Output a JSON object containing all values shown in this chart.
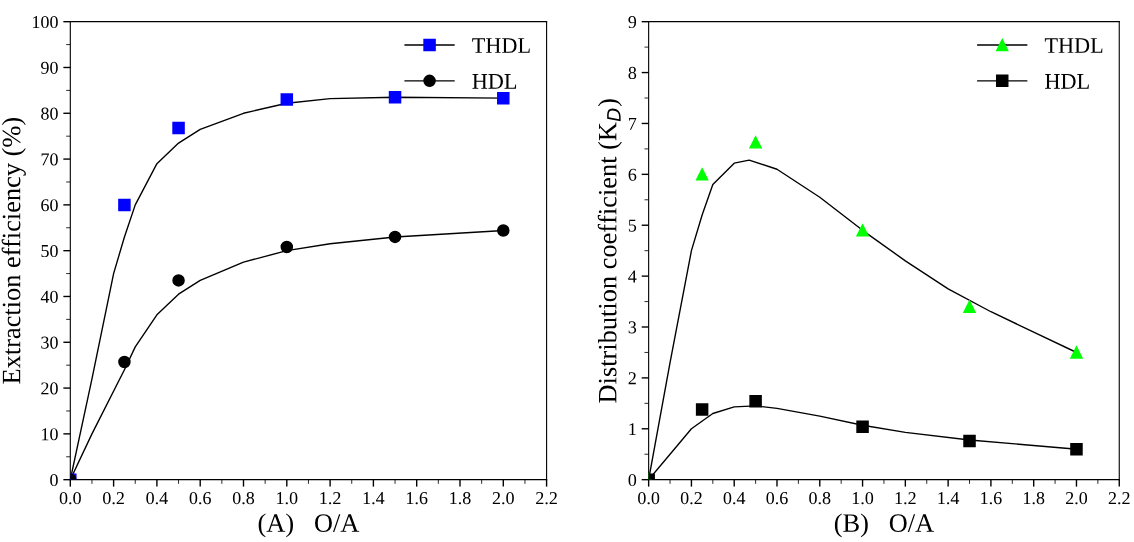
{
  "chart_data": [
    {
      "type": "scatter",
      "xlabel": "(A)   O/A",
      "ylabel": "Extraction efficiency (%)",
      "xlim": [
        0,
        2.2
      ],
      "xticks": [
        {
          "value": 0,
          "label": "0.0"
        },
        0.2,
        0.4,
        0.6,
        0.8,
        {
          "value": 1,
          "label": "1.0"
        },
        1.2,
        1.4,
        1.6,
        1.8,
        {
          "value": 2,
          "label": "2.0"
        },
        2.2
      ],
      "ylim": [
        0,
        100
      ],
      "yticks": [
        0,
        10,
        20,
        30,
        40,
        50,
        60,
        70,
        80,
        90,
        100
      ],
      "grid": false,
      "legend": "top right",
      "series": [
        {
          "name": "THDL",
          "marker": "square",
          "color": "#0000ff",
          "x": [
            0,
            0.25,
            0.5,
            1.0,
            1.5,
            2.0
          ],
          "values": [
            0,
            60,
            76.8,
            83,
            83.5,
            83.3
          ]
        },
        {
          "name": "HDL",
          "marker": "circle",
          "color": "#000000",
          "x": [
            0,
            0.25,
            0.5,
            1.0,
            1.5,
            2.0
          ],
          "values": [
            0,
            25.7,
            43.5,
            50.8,
            53,
            54.4
          ]
        },
        {
          "type": "line",
          "marker": "none",
          "color": "#000000",
          "x": [
            0,
            0.1,
            0.2,
            0.25,
            0.3,
            0.4,
            0.5,
            0.6,
            0.8,
            1.0,
            1.2,
            1.5,
            2.0
          ],
          "values": [
            0,
            22,
            45,
            53,
            60,
            69,
            73.5,
            76.5,
            80,
            82.2,
            83.2,
            83.5,
            83.3
          ]
        },
        {
          "type": "line",
          "marker": "none",
          "color": "#000000",
          "x": [
            0,
            0.1,
            0.25,
            0.3,
            0.4,
            0.5,
            0.6,
            0.8,
            1.0,
            1.2,
            1.5,
            2.0
          ],
          "values": [
            0,
            10,
            24,
            29,
            36,
            40.5,
            43.5,
            47.5,
            50,
            51.5,
            53,
            54.4
          ]
        }
      ]
    },
    {
      "type": "scatter",
      "xlabel": "(B)   O/A",
      "ylabel": "Distribution coefficient (K$_{D}$)",
      "xlim": [
        0,
        2.2
      ],
      "xticks": [
        {
          "value": 0,
          "label": "0.0"
        },
        0.2,
        0.4,
        0.6,
        0.8,
        {
          "value": 1,
          "label": "1.0"
        },
        1.2,
        1.4,
        1.6,
        1.8,
        {
          "value": 2,
          "label": "2.0"
        },
        2.2
      ],
      "ylim": [
        0,
        9
      ],
      "yticks": [
        0,
        1,
        2,
        3,
        4,
        5,
        6,
        7,
        8,
        9
      ],
      "grid": false,
      "legend": "top right",
      "series": [
        {
          "name": "THDL",
          "marker": "triangle",
          "color": "#00ff00",
          "x": [
            0,
            0.25,
            0.5,
            1.0,
            1.5,
            2.0
          ],
          "values": [
            0,
            6.0,
            6.63,
            4.9,
            3.4,
            2.5
          ]
        },
        {
          "name": "HDL",
          "marker": "square",
          "color": "#000000",
          "x": [
            0,
            0.25,
            0.5,
            1.0,
            1.5,
            2.0
          ],
          "values": [
            0,
            1.38,
            1.54,
            1.04,
            0.76,
            0.6
          ]
        },
        {
          "type": "line",
          "marker": "none",
          "color": "#000000",
          "x": [
            0,
            0.1,
            0.2,
            0.25,
            0.3,
            0.4,
            0.47,
            0.6,
            0.8,
            1.0,
            1.2,
            1.4,
            1.6,
            1.8,
            2.0
          ],
          "values": [
            0,
            2.3,
            4.5,
            5.2,
            5.8,
            6.22,
            6.28,
            6.1,
            5.55,
            4.9,
            4.3,
            3.75,
            3.3,
            2.9,
            2.5
          ]
        },
        {
          "type": "line",
          "marker": "none",
          "color": "#000000",
          "x": [
            0,
            0.1,
            0.2,
            0.3,
            0.4,
            0.5,
            0.6,
            0.8,
            1.0,
            1.2,
            1.5,
            2.0
          ],
          "values": [
            0,
            0.5,
            1.0,
            1.3,
            1.43,
            1.45,
            1.4,
            1.25,
            1.07,
            0.93,
            0.78,
            0.6
          ]
        }
      ]
    }
  ]
}
